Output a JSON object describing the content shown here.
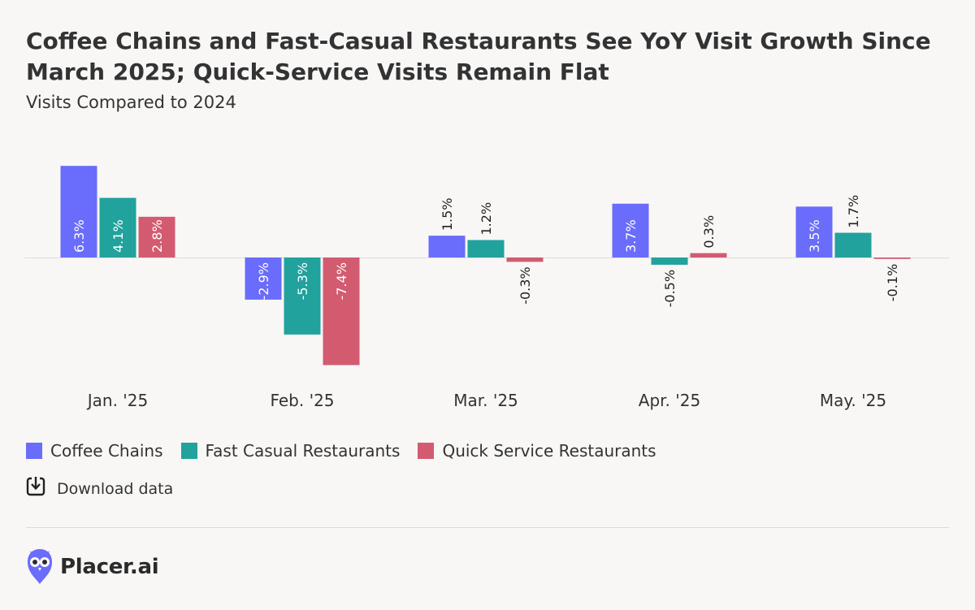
{
  "header": {
    "title": "Coffee Chains and Fast-Casual Restaurants See YoY Visit Growth Since March 2025; Quick-Service Visits Remain Flat",
    "subtitle": "Visits Compared to 2024"
  },
  "chart_data": {
    "type": "bar",
    "title": "Coffee Chains and Fast-Casual Restaurants See YoY Visit Growth Since March 2025; Quick-Service Visits Remain Flat",
    "subtitle": "Visits Compared to 2024",
    "categories": [
      "Jan. '25",
      "Feb. '25",
      "Mar. '25",
      "Apr. '25",
      "May. '25"
    ],
    "series": [
      {
        "name": "Coffee Chains",
        "color": "#6a6cfb",
        "values": [
          6.3,
          -2.9,
          1.5,
          3.7,
          3.5
        ],
        "labels": [
          "6.3%",
          "-2.9%",
          "1.5%",
          "3.7%",
          "3.5%"
        ]
      },
      {
        "name": "Fast Casual Restaurants",
        "color": "#21a29d",
        "values": [
          4.1,
          -5.3,
          1.2,
          -0.5,
          1.7
        ],
        "labels": [
          "4.1%",
          "-5.3%",
          "1.2%",
          "-0.5%",
          "1.7%"
        ]
      },
      {
        "name": "Quick Service Restaurants",
        "color": "#d35b70",
        "values": [
          2.8,
          -7.4,
          -0.3,
          0.3,
          -0.1
        ],
        "labels": [
          "2.8%",
          "-7.4%",
          "-0.3%",
          "0.3%",
          "-0.1%"
        ]
      }
    ],
    "ylim": [
      -7.4,
      6.3
    ],
    "grid": false,
    "legend": "bottom-left"
  },
  "legend": {
    "items": [
      {
        "label": "Coffee Chains",
        "color": "#6a6cfb"
      },
      {
        "label": "Fast Casual Restaurants",
        "color": "#21a29d"
      },
      {
        "label": "Quick Service Restaurants",
        "color": "#d35b70"
      }
    ]
  },
  "download": {
    "label": "Download data",
    "icon": "download-icon"
  },
  "footer": {
    "brand": "Placer.ai",
    "logo_icon": "owl-logo-icon"
  }
}
